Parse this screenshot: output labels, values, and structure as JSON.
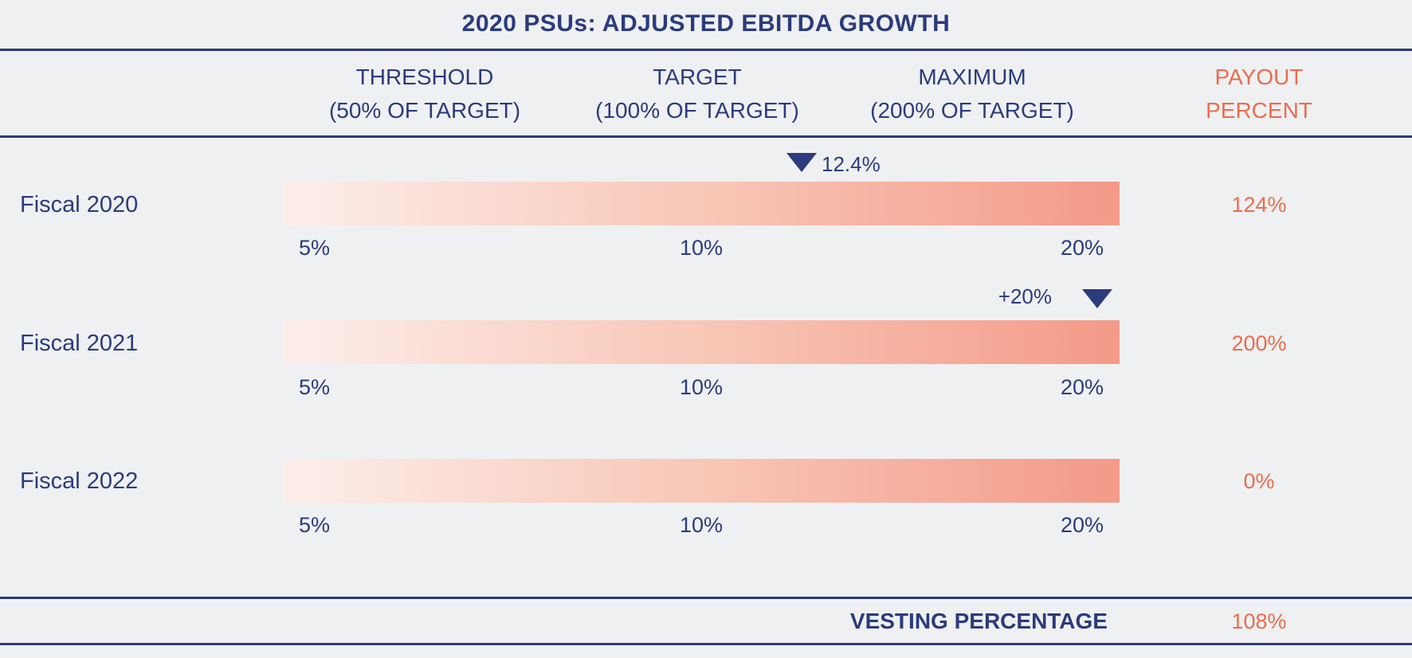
{
  "colors": {
    "background": "#eff0f2",
    "navy": "#2b3b7c",
    "orange": "#e96e4d",
    "bar_gradient_start": "#fdeeeb",
    "bar_gradient_end": "#f49a89"
  },
  "title": "2020 PSUs: ADJUSTED EBITDA GROWTH",
  "header": {
    "threshold": {
      "line1": "THRESHOLD",
      "line2": "(50% OF TARGET)"
    },
    "target": {
      "line1": "TARGET",
      "line2": "(100% OF TARGET)"
    },
    "maximum": {
      "line1": "MAXIMUM",
      "line2": "(200% OF TARGET)"
    },
    "payout": {
      "line1": "PAYOUT",
      "line2": "PERCENT"
    }
  },
  "rows": [
    {
      "label": "Fiscal 2020",
      "marker": "12.4%",
      "ticks": [
        "5%",
        "10%",
        "20%"
      ],
      "payout": "124%"
    },
    {
      "label": "Fiscal 2021",
      "marker": "+20%",
      "ticks": [
        "5%",
        "10%",
        "20%"
      ],
      "payout": "200%"
    },
    {
      "label": "Fiscal 2022",
      "marker": null,
      "ticks": [
        "5%",
        "10%",
        "20%"
      ],
      "payout": "0%"
    }
  ],
  "footer": {
    "label": "VESTING PERCENTAGE",
    "value": "108%"
  },
  "chart_data": {
    "type": "bar",
    "title": "2020 PSUs: ADJUSTED EBITDA GROWTH",
    "metric": "Adjusted EBITDA growth",
    "scale": {
      "threshold_growth_pct": 5,
      "target_growth_pct": 10,
      "maximum_growth_pct": 20,
      "threshold_payout_pct_of_target": 50,
      "target_payout_pct_of_target": 100,
      "maximum_payout_pct_of_target": 200
    },
    "axis_ticks": [
      "5%",
      "10%",
      "20%"
    ],
    "categories": [
      "Fiscal 2020",
      "Fiscal 2021",
      "Fiscal 2022"
    ],
    "series": [
      {
        "name": "Actual adjusted EBITDA growth",
        "values": [
          "12.4%",
          "+20%",
          null
        ]
      },
      {
        "name": "Payout percent",
        "values": [
          "124%",
          "200%",
          "0%"
        ]
      }
    ],
    "marker_positions_pct_of_bar": [
      62,
      97,
      null
    ],
    "footer": {
      "label": "VESTING PERCENTAGE",
      "value": "108%"
    },
    "legend_position": "none",
    "grid": false
  }
}
